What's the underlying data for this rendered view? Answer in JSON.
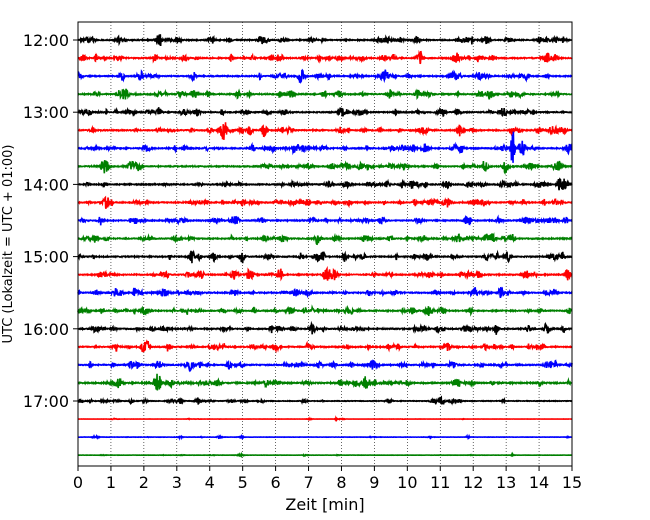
{
  "chart_data": {
    "type": "line",
    "title": "",
    "xlabel": "Zeit  [min]",
    "ylabel": "UTC (Lokalzeit = UTC + 01:00)",
    "xlim": [
      0,
      15
    ],
    "x_ticks": [
      0,
      1,
      2,
      3,
      4,
      5,
      6,
      7,
      8,
      9,
      10,
      11,
      12,
      13,
      14,
      15
    ],
    "y_tick_labels": [
      "12:00",
      "13:00",
      "14:00",
      "15:00",
      "16:00",
      "17:00"
    ],
    "grid": "vertical dotted",
    "colors": [
      "#000000",
      "#ff0000",
      "#0000ff",
      "#008000"
    ],
    "series": [
      {
        "start": "12:00",
        "color": "#000000",
        "amplitude": 1.0,
        "events": []
      },
      {
        "start": "12:15",
        "color": "#ff0000",
        "amplitude": 1.0,
        "events": []
      },
      {
        "start": "12:30",
        "color": "#0000ff",
        "amplitude": 1.0,
        "events": []
      },
      {
        "start": "12:45",
        "color": "#008000",
        "amplitude": 1.0,
        "events": []
      },
      {
        "start": "13:00",
        "color": "#000000",
        "amplitude": 1.0,
        "events": []
      },
      {
        "start": "13:15",
        "color": "#ff0000",
        "amplitude": 1.0,
        "events": [
          [
            4.95,
            1.6
          ]
        ]
      },
      {
        "start": "13:30",
        "color": "#0000ff",
        "amplitude": 1.0,
        "events": [
          [
            13.2,
            6.0
          ]
        ]
      },
      {
        "start": "13:45",
        "color": "#008000",
        "amplitude": 1.0,
        "events": []
      },
      {
        "start": "14:00",
        "color": "#000000",
        "amplitude": 1.0,
        "events": []
      },
      {
        "start": "14:15",
        "color": "#ff0000",
        "amplitude": 1.0,
        "events": []
      },
      {
        "start": "14:30",
        "color": "#0000ff",
        "amplitude": 1.0,
        "events": []
      },
      {
        "start": "14:45",
        "color": "#008000",
        "amplitude": 1.0,
        "events": []
      },
      {
        "start": "15:00",
        "color": "#000000",
        "amplitude": 1.0,
        "events": [
          [
            5.0,
            1.6
          ]
        ]
      },
      {
        "start": "15:15",
        "color": "#ff0000",
        "amplitude": 1.0,
        "events": []
      },
      {
        "start": "15:30",
        "color": "#0000ff",
        "amplitude": 1.0,
        "events": []
      },
      {
        "start": "15:45",
        "color": "#008000",
        "amplitude": 1.0,
        "events": []
      },
      {
        "start": "16:00",
        "color": "#000000",
        "amplitude": 1.0,
        "events": [
          [
            12.7,
            1.8
          ]
        ]
      },
      {
        "start": "16:15",
        "color": "#ff0000",
        "amplitude": 1.0,
        "events": []
      },
      {
        "start": "16:30",
        "color": "#0000ff",
        "amplitude": 1.0,
        "events": []
      },
      {
        "start": "16:45",
        "color": "#008000",
        "amplitude": 1.2,
        "events": []
      },
      {
        "start": "17:00",
        "color": "#000000",
        "amplitude": 0.6,
        "events": []
      },
      {
        "start": "17:15",
        "color": "#ff0000",
        "amplitude": 0.15,
        "events": []
      },
      {
        "start": "17:30",
        "color": "#0000ff",
        "amplitude": 0.25,
        "events": [
          [
            4.95,
            2.2
          ]
        ]
      },
      {
        "start": "17:45",
        "color": "#008000",
        "amplitude": 0.2,
        "events": []
      }
    ]
  }
}
